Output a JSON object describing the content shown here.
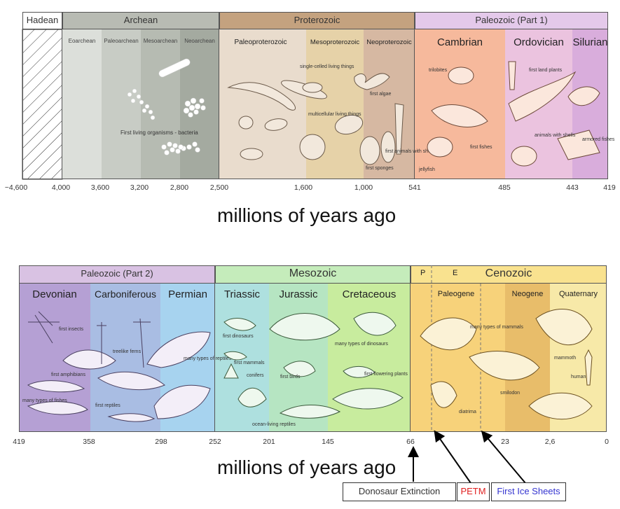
{
  "top": {
    "eons": {
      "hadean": "Hadean",
      "archean": "Archean",
      "proterozoic": "Proterozoic",
      "paleozoic1": "Paleozoic  (Part 1)"
    },
    "subperiods": {
      "eoarchean": "Eoarchean",
      "paleoarchean": "Paleoarchean",
      "mesoarchean": "Mesoarchean",
      "neoarchean": "Neoarchean",
      "paleoproterozoic": "Paleoproterozoic",
      "mesoproterozoic": "Mesoproterozoic",
      "neoproterozoic": "Neoproterozoic",
      "cambrian": "Cambrian",
      "ordovician": "Ordovician",
      "silurian": "Silurian"
    },
    "notes": {
      "bacteria": "First living organisms - bacteria",
      "single_celled": "single-celled living things",
      "multicellular": "multicellular living things",
      "first_algae": "first algae",
      "first_animals_shells": "first animals with shells",
      "first_sponges": "first sponges",
      "trilobites": "trilobites",
      "first_fishes": "first fishes",
      "jellyfish": "jellyfish",
      "first_land_plants": "first land plants",
      "animals_with_shells": "animals with shells",
      "armored_fishes": "armored fishes"
    },
    "ticks": [
      "~4,600",
      "4,000",
      "3,600",
      "3,200",
      "2,800",
      "2,500",
      "1,600",
      "1,000",
      "541",
      "485",
      "443",
      "419"
    ],
    "axis_title": "millions of years ago"
  },
  "bottom": {
    "eras": {
      "paleozoic2": "Paleozoic  (Part 2)",
      "mesozoic": "Mesozoic",
      "cenozoic": "Cenozoic",
      "p_marker": "P",
      "e_marker": "E"
    },
    "periods": {
      "devonian": "Devonian",
      "carboniferous": "Carboniferous",
      "permian": "Permian",
      "triassic": "Triassic",
      "jurassic": "Jurassic",
      "cretaceous": "Cretaceous",
      "paleogene": "Paleogene",
      "neogene": "Neogene",
      "quaternary": "Quaternary"
    },
    "notes": {
      "first_insects": "first insects",
      "treelike_ferns": "treelike ferns",
      "first_amphibians": "first amphibians",
      "many_fishes": "many types of fishes",
      "first_reptiles": "first reptiles",
      "many_reptiles": "many types of reptiles",
      "first_dinosaurs": "first dinosaurs",
      "first_mammals": "first mammals",
      "conifers": "conifers",
      "first_birds": "first birds",
      "ocean_reptiles": "ocean-living reptiles",
      "many_dinosaurs": "many types of dinosaurs",
      "flowering_plants": "first flowering plants",
      "many_mammals": "many types of mammals",
      "diatrima": "diatrima",
      "smilodon": "smilodon",
      "mammoth": "mammoth",
      "human": "human"
    },
    "ticks": [
      "419",
      "358",
      "298",
      "252",
      "201",
      "145",
      "66",
      "23",
      "2,6",
      "0"
    ],
    "axis_title": "millions of years ago"
  },
  "callouts": {
    "extinction": "Donosaur Extinction",
    "petm": "PETM",
    "ice": "First Ice Sheets"
  },
  "colors": {
    "archean": "#b9bdb5",
    "proterozoic": "#c8a888",
    "paleozoic_header": "#e4c9ea",
    "cambrian": "#f5b294",
    "ordovician": "#e6b2d8",
    "silurian": "#d7a9d8",
    "devonian": "#b9a2d3",
    "carboniferous": "#a9badf",
    "permian": "#a8cde9",
    "mesozoic": "#bfe8b7",
    "cenozoic": "#f8de8a",
    "petm_text": "#e02020",
    "ice_text": "#3535d0"
  }
}
